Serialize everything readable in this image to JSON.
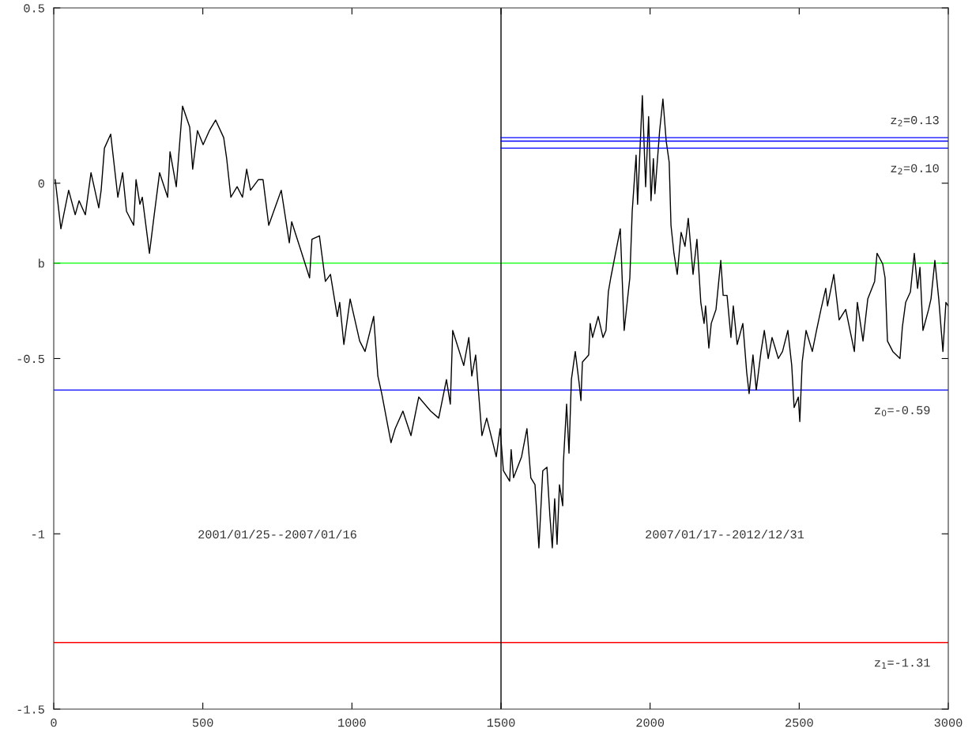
{
  "chart_data": {
    "type": "line",
    "xlim": [
      0,
      3000
    ],
    "xticks": [
      0,
      500,
      1000,
      1500,
      2000,
      2500,
      3000
    ],
    "ylim": [
      -1.5,
      0.5
    ],
    "yticks": [
      -1.5,
      -1,
      -0.5,
      {
        "value": -0.228,
        "label": "b"
      },
      0,
      0.5
    ],
    "grid": false,
    "marker": "none",
    "line_style": "solid",
    "series": [
      {
        "color": "#000000",
        "x": [
          5,
          24,
          50,
          72,
          85,
          106,
          125,
          151,
          159,
          170,
          191,
          215,
          231,
          244,
          268,
          276,
          289,
          297,
          321,
          337,
          355,
          382,
          390,
          411,
          432,
          456,
          466,
          482,
          501,
          522,
          543,
          570,
          580,
          594,
          615,
          633,
          647,
          660,
          686,
          702,
          721,
          763,
          790,
          798,
          832,
          858,
          866,
          891,
          911,
          928,
          951,
          959,
          973,
          994,
          1026,
          1044,
          1073,
          1087,
          1100,
          1131,
          1145,
          1171,
          1198,
          1224,
          1264,
          1291,
          1317,
          1330,
          1338,
          1375,
          1392,
          1402,
          1415,
          1436,
          1452,
          1484,
          1497,
          1508,
          1529,
          1534,
          1542,
          1569,
          1587,
          1600,
          1614,
          1627,
          1640,
          1654,
          1664,
          1672,
          1680,
          1688,
          1696,
          1707,
          1709,
          1720,
          1728,
          1736,
          1749,
          1762,
          1768,
          1773,
          1794,
          1799,
          1807,
          1826,
          1842,
          1852,
          1860,
          1868,
          1900,
          1913,
          1932,
          1940,
          1953,
          1958,
          1974,
          1985,
          1995,
          2003,
          2011,
          2016,
          2032,
          2043,
          2054,
          2064,
          2070,
          2080,
          2091,
          2104,
          2117,
          2128,
          2144,
          2157,
          2170,
          2181,
          2186,
          2197,
          2205,
          2221,
          2237,
          2245,
          2258,
          2271,
          2279,
          2292,
          2311,
          2324,
          2332,
          2345,
          2356,
          2372,
          2383,
          2396,
          2409,
          2430,
          2444,
          2462,
          2475,
          2483,
          2497,
          2502,
          2510,
          2523,
          2544,
          2558,
          2573,
          2589,
          2595,
          2616,
          2634,
          2656,
          2685,
          2695,
          2714,
          2730,
          2753,
          2761,
          2780,
          2788,
          2796,
          2814,
          2838,
          2846,
          2857,
          2873,
          2886,
          2897,
          2905,
          2915,
          2934,
          2942,
          2955,
          2968,
          2982,
          2992,
          3000
        ],
        "values": [
          0.01,
          -0.13,
          -0.02,
          -0.09,
          -0.05,
          -0.09,
          0.03,
          -0.07,
          -0.02,
          0.1,
          0.14,
          -0.04,
          0.03,
          -0.08,
          -0.12,
          0.01,
          -0.06,
          -0.04,
          -0.2,
          -0.09,
          0.03,
          -0.04,
          0.09,
          -0.01,
          0.22,
          0.16,
          0.04,
          0.15,
          0.11,
          0.15,
          0.18,
          0.13,
          0.07,
          -0.04,
          -0.01,
          -0.04,
          0.04,
          -0.02,
          0.01,
          0.01,
          -0.12,
          -0.02,
          -0.17,
          -0.11,
          -0.2,
          -0.27,
          -0.16,
          -0.15,
          -0.28,
          -0.26,
          -0.38,
          -0.34,
          -0.46,
          -0.33,
          -0.45,
          -0.48,
          -0.38,
          -0.55,
          -0.6,
          -0.74,
          -0.7,
          -0.65,
          -0.72,
          -0.61,
          -0.65,
          -0.67,
          -0.56,
          -0.63,
          -0.42,
          -0.52,
          -0.44,
          -0.55,
          -0.49,
          -0.72,
          -0.67,
          -0.78,
          -0.7,
          -0.82,
          -0.85,
          -0.76,
          -0.84,
          -0.78,
          -0.7,
          -0.84,
          -0.86,
          -1.04,
          -0.82,
          -0.81,
          -0.95,
          -1.04,
          -0.9,
          -1.03,
          -0.86,
          -0.92,
          -0.8,
          -0.63,
          -0.77,
          -0.56,
          -0.48,
          -0.57,
          -0.62,
          -0.51,
          -0.49,
          -0.4,
          -0.44,
          -0.38,
          -0.44,
          -0.42,
          -0.31,
          -0.27,
          -0.13,
          -0.42,
          -0.27,
          -0.08,
          0.08,
          -0.06,
          0.25,
          -0.01,
          0.19,
          -0.05,
          0.07,
          -0.03,
          0.15,
          0.24,
          0.12,
          0.06,
          -0.12,
          -0.2,
          -0.26,
          -0.14,
          -0.18,
          -0.1,
          -0.26,
          -0.16,
          -0.34,
          -0.4,
          -0.35,
          -0.47,
          -0.4,
          -0.36,
          -0.22,
          -0.32,
          -0.32,
          -0.44,
          -0.35,
          -0.46,
          -0.4,
          -0.54,
          -0.6,
          -0.49,
          -0.59,
          -0.48,
          -0.42,
          -0.5,
          -0.44,
          -0.5,
          -0.48,
          -0.42,
          -0.52,
          -0.64,
          -0.61,
          -0.68,
          -0.51,
          -0.42,
          -0.48,
          -0.42,
          -0.36,
          -0.3,
          -0.35,
          -0.26,
          -0.39,
          -0.36,
          -0.48,
          -0.34,
          -0.45,
          -0.33,
          -0.28,
          -0.2,
          -0.23,
          -0.27,
          -0.45,
          -0.48,
          -0.5,
          -0.41,
          -0.34,
          -0.31,
          -0.2,
          -0.3,
          -0.24,
          -0.42,
          -0.36,
          -0.33,
          -0.22,
          -0.33,
          -0.48,
          -0.34,
          -0.35
        ]
      },
      {
        "name": "z$_{2}$=0.13",
        "color": "#0000ff",
        "x": [
          1500,
          3000
        ],
        "values": [
          0.13,
          0.13
        ]
      },
      {
        "color": "#0000ff",
        "x": [
          1500,
          3000
        ],
        "values": [
          0.12,
          0.12
        ]
      },
      {
        "name": "z$_{2}$=0.10",
        "color": "#0000ff",
        "x": [
          1500,
          3000
        ],
        "values": [
          0.1,
          0.1
        ]
      }
    ],
    "ref_lines": [
      {
        "axis": "y",
        "value": -0.228,
        "color": "#00ff00"
      },
      {
        "axis": "y",
        "value": -0.59,
        "label": "z$_{0}$=-0.59",
        "color": "#0000ff"
      },
      {
        "axis": "y",
        "value": -1.31,
        "label": "z$_{1}$=-1.31",
        "color": "#ff0000"
      },
      {
        "axis": "x",
        "value": 1500,
        "color": "#000000"
      }
    ],
    "annotations": [
      "2001/01/25--2007/01/16",
      "2007/01/17--2012/12/31"
    ]
  }
}
